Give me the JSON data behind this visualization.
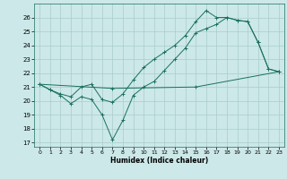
{
  "xlabel": "Humidex (Indice chaleur)",
  "background_color": "#cce8e8",
  "line_color": "#1a7060",
  "grid_color": "#aacccc",
  "xlim": [
    -0.5,
    23.5
  ],
  "ylim": [
    16.7,
    27.0
  ],
  "yticks": [
    17,
    18,
    19,
    20,
    21,
    22,
    23,
    24,
    25,
    26
  ],
  "xticks": [
    0,
    1,
    2,
    3,
    4,
    5,
    6,
    7,
    8,
    9,
    10,
    11,
    12,
    13,
    14,
    15,
    16,
    17,
    18,
    19,
    20,
    21,
    22,
    23
  ],
  "series1_jagged": {
    "x": [
      0,
      1,
      2,
      3,
      4,
      5,
      6,
      7,
      8,
      9,
      10,
      11,
      12,
      13,
      14,
      15,
      16,
      17,
      18,
      19,
      20,
      21,
      22,
      23
    ],
    "y": [
      21.2,
      20.8,
      20.4,
      19.8,
      20.3,
      20.1,
      19.0,
      17.2,
      18.6,
      20.4,
      21.0,
      21.4,
      22.2,
      23.0,
      23.8,
      24.9,
      25.2,
      25.5,
      26.0,
      25.8,
      25.7,
      24.2,
      22.3,
      22.1
    ]
  },
  "series2_smooth": {
    "x": [
      0,
      1,
      2,
      3,
      4,
      5,
      6,
      7,
      8,
      9,
      10,
      11,
      12,
      13,
      14,
      15,
      16,
      17,
      18,
      19,
      20,
      21,
      22,
      23
    ],
    "y": [
      21.2,
      20.8,
      20.5,
      20.3,
      21.0,
      21.2,
      20.1,
      19.9,
      20.5,
      21.5,
      22.4,
      23.0,
      23.5,
      24.0,
      24.7,
      25.7,
      26.5,
      26.0,
      26.0,
      25.8,
      25.7,
      24.2,
      22.3,
      22.1
    ]
  },
  "series3_flat": {
    "x": [
      0,
      7,
      15,
      23
    ],
    "y": [
      21.2,
      20.9,
      21.0,
      22.1
    ]
  }
}
